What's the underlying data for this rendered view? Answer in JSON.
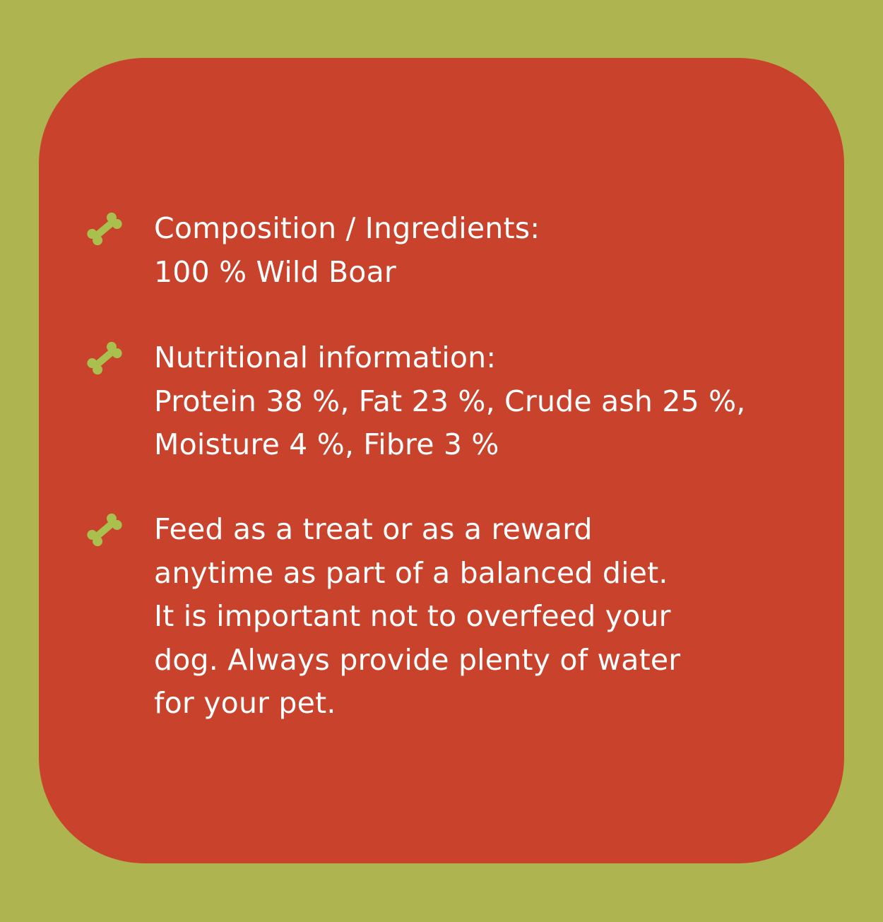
{
  "colors": {
    "background": "#adb450",
    "card": "#c9422c",
    "bone": "#a9c04f",
    "text": "#ffffff"
  },
  "items": [
    {
      "icon": "bone-icon",
      "lines": [
        "Composition / Ingredients:",
        "100 % Wild Boar"
      ]
    },
    {
      "icon": "bone-icon",
      "lines": [
        "Nutritional information:",
        "Protein 38 %, Fat 23 %, Crude ash 25 %,",
        "Moisture 4 %, Fibre 3 %"
      ]
    },
    {
      "icon": "bone-icon",
      "lines": [
        "Feed as a treat or as a reward",
        "anytime as part of a balanced diet.",
        "It is important not to overfeed your",
        "dog. Always provide plenty of water",
        "for your pet."
      ]
    }
  ]
}
